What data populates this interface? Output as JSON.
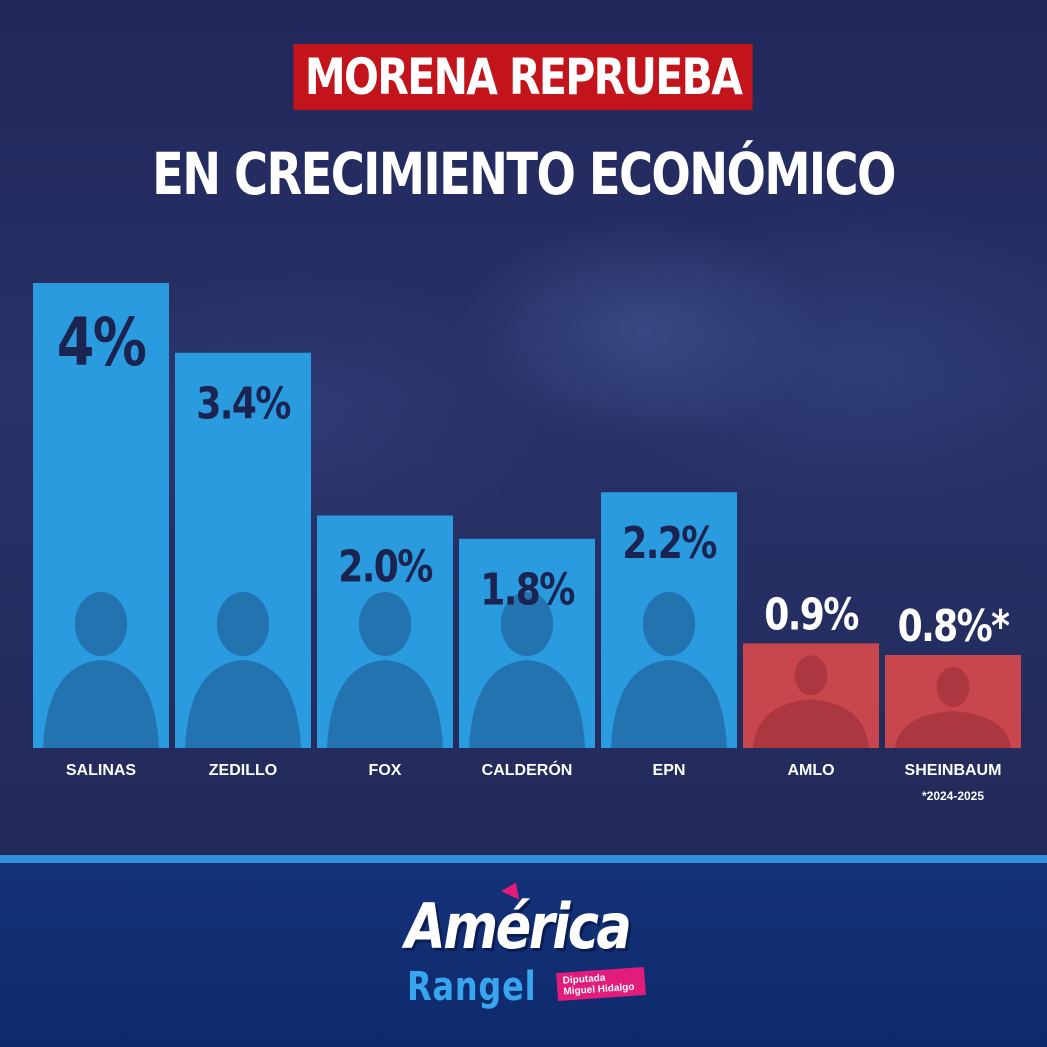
{
  "title_line1": "MORENA REPRUEBA",
  "title_line2": "EN CRECIMIENTO ECONÓMICO",
  "colors": {
    "bar_blue": "#2b9be0",
    "bar_red": "#c8464e",
    "title_red": "#c3141c",
    "footer_blue": "#14327a",
    "logo_pink": "#e11c7b"
  },
  "chart_data": {
    "type": "bar",
    "categories": [
      "SALINAS",
      "ZEDILLO",
      "FOX",
      "CALDERÓN",
      "EPN",
      "AMLO",
      "SHEINBAUM"
    ],
    "values": [
      4.0,
      3.4,
      2.0,
      1.8,
      2.2,
      0.9,
      0.8
    ],
    "value_labels": [
      "4%",
      "3.4%",
      "2.0%",
      "1.8%",
      "2.2%",
      "0.9%",
      "0.8%*"
    ],
    "bar_colors": [
      "blue",
      "blue",
      "blue",
      "blue",
      "blue",
      "red",
      "red"
    ],
    "footnote": "*2024-2025",
    "ylim": [
      0,
      4.0
    ],
    "grid": false,
    "legend": "none"
  },
  "footer": {
    "logo_line1": "América",
    "logo_line2": "Rangel",
    "logo_tag": "Diputada Miguel Hidalgo"
  }
}
